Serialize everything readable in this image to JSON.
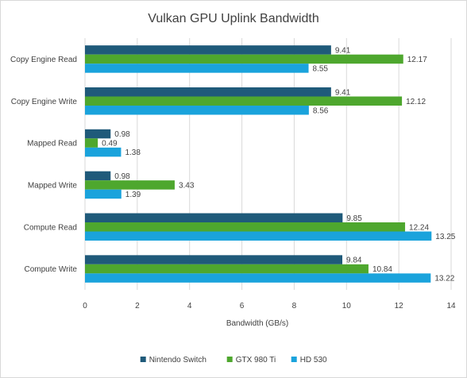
{
  "chart_data": {
    "type": "bar",
    "orientation": "horizontal",
    "title": "Vulkan GPU Uplink Bandwidth",
    "xlabel": "Bandwidth (GB/s)",
    "ylabel": "",
    "xlim": [
      0,
      14
    ],
    "xticks": [
      "0",
      "2",
      "4",
      "6",
      "8",
      "10",
      "12",
      "14"
    ],
    "grid": true,
    "legend_position": "bottom",
    "categories": [
      "Copy Engine Read",
      "Copy Engine Write",
      "Mapped Read",
      "Mapped Write",
      "Compute Read",
      "Compute Write"
    ],
    "series": [
      {
        "name": "Nintendo Switch",
        "color": "#1f5a7a",
        "values": [
          9.41,
          9.41,
          0.98,
          0.98,
          9.85,
          9.84
        ],
        "labels": [
          "9.41",
          "9.41",
          "0.98",
          "0.98",
          "9.85",
          "9.84"
        ]
      },
      {
        "name": "GTX 980 Ti",
        "color": "#4ea72e",
        "values": [
          12.17,
          12.12,
          0.49,
          3.43,
          12.24,
          10.84
        ],
        "labels": [
          "12.17",
          "12.12",
          "0.49",
          "3.43",
          "12.24",
          "10.84"
        ]
      },
      {
        "name": "HD 530",
        "color": "#1aa3dc",
        "values": [
          8.55,
          8.56,
          1.38,
          1.39,
          13.25,
          13.22
        ],
        "labels": [
          "8.55",
          "8.56",
          "1.38",
          "1.39",
          "13.25",
          "13.22"
        ]
      }
    ]
  }
}
